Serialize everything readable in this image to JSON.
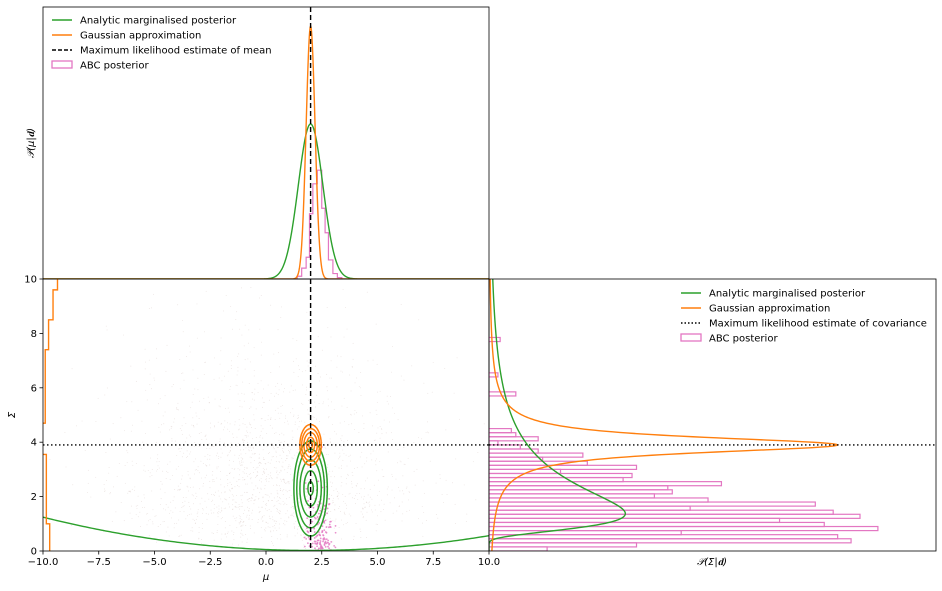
{
  "chart_data": [
    {
      "type": "line",
      "panel": "top",
      "ylabel": "𝒫(μ|𝐝)",
      "xlim": [
        -10,
        10
      ],
      "legend": {
        "position": "top-left",
        "entries": [
          "Analytic marginalised posterior",
          "Gaussian approximation",
          "Maximum likelihood estimate of mean",
          "ABC posterior"
        ]
      },
      "mle_mean": 2.0,
      "series": [
        {
          "name": "Analytic marginalised posterior",
          "color": "#2ca02c",
          "center": 2.0,
          "sigma": 0.55,
          "peak_height_fraction": 0.57
        },
        {
          "name": "Gaussian approximation",
          "color": "#ff7f0e",
          "center": 2.0,
          "sigma": 0.2,
          "peak_height_fraction": 0.93
        },
        {
          "name": "Maximum likelihood estimate of mean",
          "color": "#000000",
          "style": "dashed",
          "x": 2.0
        },
        {
          "name": "ABC posterior",
          "color": "#e377c2",
          "type": "histogram",
          "bins": [
            [
              1.4,
              1.6,
              0.01
            ],
            [
              1.6,
              1.8,
              0.04
            ],
            [
              1.8,
              1.95,
              0.08
            ],
            [
              1.95,
              2.1,
              0.24
            ],
            [
              2.1,
              2.3,
              0.35
            ],
            [
              2.3,
              2.5,
              0.4
            ],
            [
              2.5,
              2.65,
              0.26
            ],
            [
              2.65,
              2.8,
              0.17
            ],
            [
              2.8,
              3.0,
              0.07
            ],
            [
              3.0,
              3.2,
              0.02
            ],
            [
              3.2,
              3.4,
              0.005
            ]
          ]
        }
      ]
    },
    {
      "type": "scatter",
      "panel": "main",
      "xlabel": "μ",
      "ylabel": "Σ",
      "xlim": [
        -10,
        10
      ],
      "ylim": [
        0,
        10
      ],
      "xticks": [
        "−10.0",
        "−7.5",
        "−5.0",
        "−2.5",
        "0.0",
        "2.5",
        "5.0",
        "7.5",
        "10.0"
      ],
      "yticks": [
        "0",
        "2",
        "4",
        "6",
        "8",
        "10"
      ],
      "mle_mean": 2.0,
      "mle_covariance": 3.9,
      "contours": {
        "analytic": {
          "color": "#2ca02c",
          "center": [
            2.0,
            2.3
          ],
          "levels": [
            [
              0.12,
              0.25
            ],
            [
              0.3,
              0.65
            ],
            [
              0.48,
              1.05
            ],
            [
              0.62,
              1.45
            ],
            [
              0.75,
              1.75
            ]
          ]
        },
        "gaussian": {
          "color": "#ff7f0e",
          "center": [
            2.0,
            3.9
          ],
          "levels": [
            [
              0.08,
              0.12
            ],
            [
              0.18,
              0.28
            ],
            [
              0.3,
              0.45
            ],
            [
              0.4,
              0.6
            ],
            [
              0.48,
              0.75
            ]
          ]
        }
      },
      "samples": {
        "prior_color": "#8c564b",
        "accepted_color": "#e377c2",
        "accepted_center": [
          2.4,
          0.6
        ]
      }
    },
    {
      "type": "line",
      "panel": "right",
      "xlabel": "𝒫(Σ|𝐝)",
      "ylim": [
        0,
        10
      ],
      "legend": {
        "position": "top-right",
        "entries": [
          "Analytic marginalised posterior",
          "Gaussian approximation",
          "Maximum likelihood estimate of covariance",
          "ABC posterior"
        ]
      },
      "mle_covariance": 3.9,
      "series": [
        {
          "name": "Analytic marginalised posterior",
          "color": "#2ca02c",
          "mode": 2.0
        },
        {
          "name": "Gaussian approximation",
          "color": "#ff7f0e",
          "center": 3.9,
          "sigma": 0.45,
          "peak_width_fraction": 0.78
        },
        {
          "name": "Maximum likelihood estimate of covariance",
          "color": "#000000",
          "style": "dotted",
          "y": 3.9
        },
        {
          "name": "ABC posterior",
          "color": "#e377c2",
          "type": "histogram",
          "bins": [
            [
              0.0,
              0.15,
              0.13
            ],
            [
              0.15,
              0.3,
              0.33
            ],
            [
              0.3,
              0.45,
              0.81
            ],
            [
              0.45,
              0.6,
              0.78
            ],
            [
              0.6,
              0.75,
              0.43
            ],
            [
              0.75,
              0.9,
              0.87
            ],
            [
              0.9,
              1.05,
              0.75
            ],
            [
              1.05,
              1.2,
              0.65
            ],
            [
              1.2,
              1.35,
              0.83
            ],
            [
              1.35,
              1.5,
              0.77
            ],
            [
              1.5,
              1.65,
              0.45
            ],
            [
              1.65,
              1.8,
              0.73
            ],
            [
              1.8,
              1.95,
              0.49
            ],
            [
              1.95,
              2.1,
              0.37
            ],
            [
              2.1,
              2.25,
              0.41
            ],
            [
              2.25,
              2.4,
              0.4
            ],
            [
              2.4,
              2.55,
              0.52
            ],
            [
              2.55,
              2.7,
              0.3
            ],
            [
              2.7,
              2.85,
              0.32
            ],
            [
              2.85,
              3.0,
              0.16
            ],
            [
              3.0,
              3.15,
              0.33
            ],
            [
              3.15,
              3.3,
              0.22
            ],
            [
              3.3,
              3.45,
              0.12
            ],
            [
              3.45,
              3.6,
              0.21
            ],
            [
              3.6,
              3.75,
              0.11
            ],
            [
              3.75,
              3.9,
              0.07
            ],
            [
              3.9,
              4.05,
              0.02
            ],
            [
              4.05,
              4.2,
              0.11
            ],
            [
              4.2,
              4.35,
              0.06
            ],
            [
              4.35,
              4.5,
              0.05
            ],
            [
              5.7,
              5.85,
              0.06
            ],
            [
              6.4,
              6.55,
              0.02
            ],
            [
              7.7,
              7.85,
              0.025
            ]
          ]
        }
      ]
    }
  ]
}
